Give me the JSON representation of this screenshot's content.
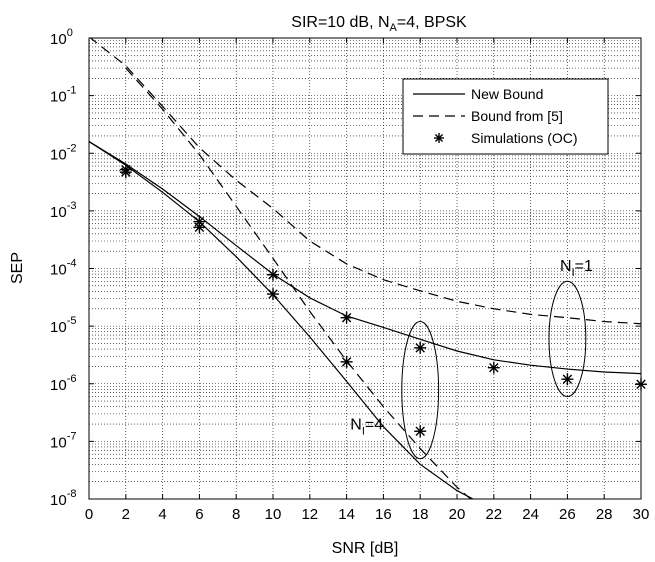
{
  "chart_data": {
    "type": "line",
    "title": {
      "main": "SIR=10 dB, N",
      "sub": "A",
      "rest": "=4, BPSK"
    },
    "xlabel": "SNR [dB]",
    "ylabel": "SEP",
    "xlim": [
      0,
      30
    ],
    "ylim": [
      1e-08,
      1
    ],
    "yscale": "log",
    "grid": true,
    "x_ticks": [
      0,
      2,
      4,
      6,
      8,
      10,
      12,
      14,
      16,
      18,
      20,
      22,
      24,
      26,
      28,
      30
    ],
    "y_ticks": [
      {
        "base": "10",
        "exp": "0",
        "value": 1
      },
      {
        "base": "10",
        "exp": "-1",
        "value": 0.1
      },
      {
        "base": "10",
        "exp": "-2",
        "value": 0.01
      },
      {
        "base": "10",
        "exp": "-3",
        "value": 0.001
      },
      {
        "base": "10",
        "exp": "-4",
        "value": 0.0001
      },
      {
        "base": "10",
        "exp": "-5",
        "value": 1e-05
      },
      {
        "base": "10",
        "exp": "-6",
        "value": 1e-06
      },
      {
        "base": "10",
        "exp": "-7",
        "value": 1e-07
      },
      {
        "base": "10",
        "exp": "-8",
        "value": 1e-08
      }
    ],
    "legend": {
      "placement": "top-right",
      "entries": [
        {
          "label": "New Bound",
          "style": "solid"
        },
        {
          "label": "Bound from [5]",
          "style": "dashed"
        },
        {
          "label": "Simulations (OC)",
          "style": "star"
        }
      ]
    },
    "series": [
      {
        "legend": "New Bound",
        "style": "solid",
        "x": [
          0,
          2,
          4,
          6,
          8,
          10,
          12,
          14,
          16,
          18,
          20,
          22,
          24,
          26,
          28,
          30
        ],
        "y": [
          0.016,
          0.0065,
          0.0024,
          0.0008,
          0.00025,
          8e-05,
          3.1e-05,
          1.5e-05,
          9.5e-06,
          5.9e-06,
          3.7e-06,
          2.6e-06,
          2.1e-06,
          1.8e-06,
          1.6e-06,
          1.5e-06
        ]
      },
      {
        "legend": "New Bound",
        "style": "solid",
        "x": [
          0,
          2,
          4,
          6,
          8,
          10,
          12,
          14,
          16,
          18,
          20,
          21
        ],
        "y": [
          0.016,
          0.0062,
          0.0021,
          0.00065,
          0.00016,
          3.5e-05,
          6.5e-06,
          1.1e-06,
          1.8e-07,
          4e-08,
          1.4e-08,
          9.5e-09
        ]
      },
      {
        "legend": "Bound from [5]",
        "style": "dashed",
        "x": [
          0,
          2,
          4,
          6,
          8,
          10,
          12,
          14,
          16,
          18,
          20,
          22,
          24,
          26,
          28,
          30
        ],
        "y": [
          1.05,
          0.33,
          0.065,
          0.0125,
          0.0034,
          0.0011,
          0.0003,
          0.00012,
          6.4e-05,
          4.1e-05,
          2.7e-05,
          2e-05,
          1.6e-05,
          1.4e-05,
          1.2e-05,
          1.1e-05
        ]
      },
      {
        "legend": "Bound from [5]",
        "style": "dashed",
        "x": [
          2,
          4,
          6,
          8,
          10,
          12,
          14,
          16,
          18,
          20,
          22,
          24,
          25
        ],
        "y": [
          0.3,
          0.058,
          0.0095,
          0.0012,
          0.00015,
          1.8e-05,
          2.5e-06,
          4e-07,
          7.5e-08,
          1.6e-08,
          4.5e-09,
          1.4e-09,
          8.5e-09
        ]
      },
      {
        "legend": "Simulations (OC)",
        "style": "star",
        "group": "N_I=1",
        "x": [
          2,
          6,
          10,
          14,
          18,
          22,
          26,
          30
        ],
        "y": [
          0.0052,
          0.00065,
          7.8e-05,
          1.4e-05,
          4.2e-06,
          1.9e-06,
          1.2e-06,
          9.8e-07
        ]
      },
      {
        "legend": "Simulations (OC)",
        "style": "star",
        "group": "N_I=4",
        "x": [
          2,
          6,
          10,
          14,
          18
        ],
        "y": [
          0.0047,
          0.00052,
          3.6e-05,
          2.4e-06,
          1.5e-07
        ]
      }
    ],
    "annotations": [
      {
        "main": "N",
        "sub": "I",
        "rest": "=1",
        "x": 25.6,
        "y": 9e-05
      },
      {
        "main": "N",
        "sub": "I",
        "rest": "=4",
        "x": 14.2,
        "y": 1.6e-07
      }
    ],
    "ellipses": [
      {
        "cx": 26,
        "cy": 5e-06,
        "x_halfwidth": 1,
        "y_top": 6e-05,
        "y_bottom": 6e-07
      },
      {
        "cx": 18,
        "cy": 8e-07,
        "x_halfwidth": 1,
        "y_top": 1.2e-05,
        "y_bottom": 5e-08
      }
    ]
  }
}
